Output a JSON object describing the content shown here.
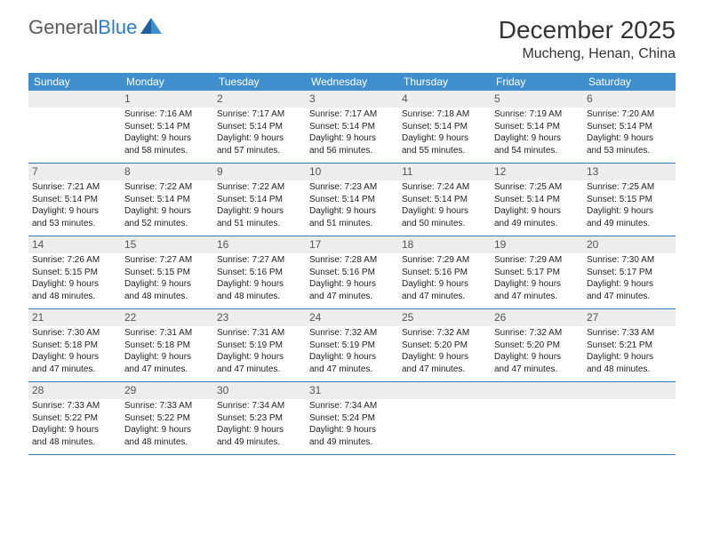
{
  "brand": {
    "text_gray": "General",
    "text_blue": "Blue"
  },
  "title": "December 2025",
  "location": "Mucheng, Henan, China",
  "colors": {
    "header_bg": "#3f8fcf",
    "border": "#2f7bbf",
    "daynum_bg": "#ededed",
    "text": "#222222",
    "logo_gray": "#5a5a5a",
    "logo_blue": "#2f7bbf"
  },
  "days_of_week": [
    "Sunday",
    "Monday",
    "Tuesday",
    "Wednesday",
    "Thursday",
    "Friday",
    "Saturday"
  ],
  "weeks": [
    [
      {
        "n": "",
        "lines": []
      },
      {
        "n": "1",
        "lines": [
          "Sunrise: 7:16 AM",
          "Sunset: 5:14 PM",
          "Daylight: 9 hours",
          "and 58 minutes."
        ]
      },
      {
        "n": "2",
        "lines": [
          "Sunrise: 7:17 AM",
          "Sunset: 5:14 PM",
          "Daylight: 9 hours",
          "and 57 minutes."
        ]
      },
      {
        "n": "3",
        "lines": [
          "Sunrise: 7:17 AM",
          "Sunset: 5:14 PM",
          "Daylight: 9 hours",
          "and 56 minutes."
        ]
      },
      {
        "n": "4",
        "lines": [
          "Sunrise: 7:18 AM",
          "Sunset: 5:14 PM",
          "Daylight: 9 hours",
          "and 55 minutes."
        ]
      },
      {
        "n": "5",
        "lines": [
          "Sunrise: 7:19 AM",
          "Sunset: 5:14 PM",
          "Daylight: 9 hours",
          "and 54 minutes."
        ]
      },
      {
        "n": "6",
        "lines": [
          "Sunrise: 7:20 AM",
          "Sunset: 5:14 PM",
          "Daylight: 9 hours",
          "and 53 minutes."
        ]
      }
    ],
    [
      {
        "n": "7",
        "lines": [
          "Sunrise: 7:21 AM",
          "Sunset: 5:14 PM",
          "Daylight: 9 hours",
          "and 53 minutes."
        ]
      },
      {
        "n": "8",
        "lines": [
          "Sunrise: 7:22 AM",
          "Sunset: 5:14 PM",
          "Daylight: 9 hours",
          "and 52 minutes."
        ]
      },
      {
        "n": "9",
        "lines": [
          "Sunrise: 7:22 AM",
          "Sunset: 5:14 PM",
          "Daylight: 9 hours",
          "and 51 minutes."
        ]
      },
      {
        "n": "10",
        "lines": [
          "Sunrise: 7:23 AM",
          "Sunset: 5:14 PM",
          "Daylight: 9 hours",
          "and 51 minutes."
        ]
      },
      {
        "n": "11",
        "lines": [
          "Sunrise: 7:24 AM",
          "Sunset: 5:14 PM",
          "Daylight: 9 hours",
          "and 50 minutes."
        ]
      },
      {
        "n": "12",
        "lines": [
          "Sunrise: 7:25 AM",
          "Sunset: 5:14 PM",
          "Daylight: 9 hours",
          "and 49 minutes."
        ]
      },
      {
        "n": "13",
        "lines": [
          "Sunrise: 7:25 AM",
          "Sunset: 5:15 PM",
          "Daylight: 9 hours",
          "and 49 minutes."
        ]
      }
    ],
    [
      {
        "n": "14",
        "lines": [
          "Sunrise: 7:26 AM",
          "Sunset: 5:15 PM",
          "Daylight: 9 hours",
          "and 48 minutes."
        ]
      },
      {
        "n": "15",
        "lines": [
          "Sunrise: 7:27 AM",
          "Sunset: 5:15 PM",
          "Daylight: 9 hours",
          "and 48 minutes."
        ]
      },
      {
        "n": "16",
        "lines": [
          "Sunrise: 7:27 AM",
          "Sunset: 5:16 PM",
          "Daylight: 9 hours",
          "and 48 minutes."
        ]
      },
      {
        "n": "17",
        "lines": [
          "Sunrise: 7:28 AM",
          "Sunset: 5:16 PM",
          "Daylight: 9 hours",
          "and 47 minutes."
        ]
      },
      {
        "n": "18",
        "lines": [
          "Sunrise: 7:29 AM",
          "Sunset: 5:16 PM",
          "Daylight: 9 hours",
          "and 47 minutes."
        ]
      },
      {
        "n": "19",
        "lines": [
          "Sunrise: 7:29 AM",
          "Sunset: 5:17 PM",
          "Daylight: 9 hours",
          "and 47 minutes."
        ]
      },
      {
        "n": "20",
        "lines": [
          "Sunrise: 7:30 AM",
          "Sunset: 5:17 PM",
          "Daylight: 9 hours",
          "and 47 minutes."
        ]
      }
    ],
    [
      {
        "n": "21",
        "lines": [
          "Sunrise: 7:30 AM",
          "Sunset: 5:18 PM",
          "Daylight: 9 hours",
          "and 47 minutes."
        ]
      },
      {
        "n": "22",
        "lines": [
          "Sunrise: 7:31 AM",
          "Sunset: 5:18 PM",
          "Daylight: 9 hours",
          "and 47 minutes."
        ]
      },
      {
        "n": "23",
        "lines": [
          "Sunrise: 7:31 AM",
          "Sunset: 5:19 PM",
          "Daylight: 9 hours",
          "and 47 minutes."
        ]
      },
      {
        "n": "24",
        "lines": [
          "Sunrise: 7:32 AM",
          "Sunset: 5:19 PM",
          "Daylight: 9 hours",
          "and 47 minutes."
        ]
      },
      {
        "n": "25",
        "lines": [
          "Sunrise: 7:32 AM",
          "Sunset: 5:20 PM",
          "Daylight: 9 hours",
          "and 47 minutes."
        ]
      },
      {
        "n": "26",
        "lines": [
          "Sunrise: 7:32 AM",
          "Sunset: 5:20 PM",
          "Daylight: 9 hours",
          "and 47 minutes."
        ]
      },
      {
        "n": "27",
        "lines": [
          "Sunrise: 7:33 AM",
          "Sunset: 5:21 PM",
          "Daylight: 9 hours",
          "and 48 minutes."
        ]
      }
    ],
    [
      {
        "n": "28",
        "lines": [
          "Sunrise: 7:33 AM",
          "Sunset: 5:22 PM",
          "Daylight: 9 hours",
          "and 48 minutes."
        ]
      },
      {
        "n": "29",
        "lines": [
          "Sunrise: 7:33 AM",
          "Sunset: 5:22 PM",
          "Daylight: 9 hours",
          "and 48 minutes."
        ]
      },
      {
        "n": "30",
        "lines": [
          "Sunrise: 7:34 AM",
          "Sunset: 5:23 PM",
          "Daylight: 9 hours",
          "and 49 minutes."
        ]
      },
      {
        "n": "31",
        "lines": [
          "Sunrise: 7:34 AM",
          "Sunset: 5:24 PM",
          "Daylight: 9 hours",
          "and 49 minutes."
        ]
      },
      {
        "n": "",
        "lines": []
      },
      {
        "n": "",
        "lines": []
      },
      {
        "n": "",
        "lines": []
      }
    ]
  ]
}
